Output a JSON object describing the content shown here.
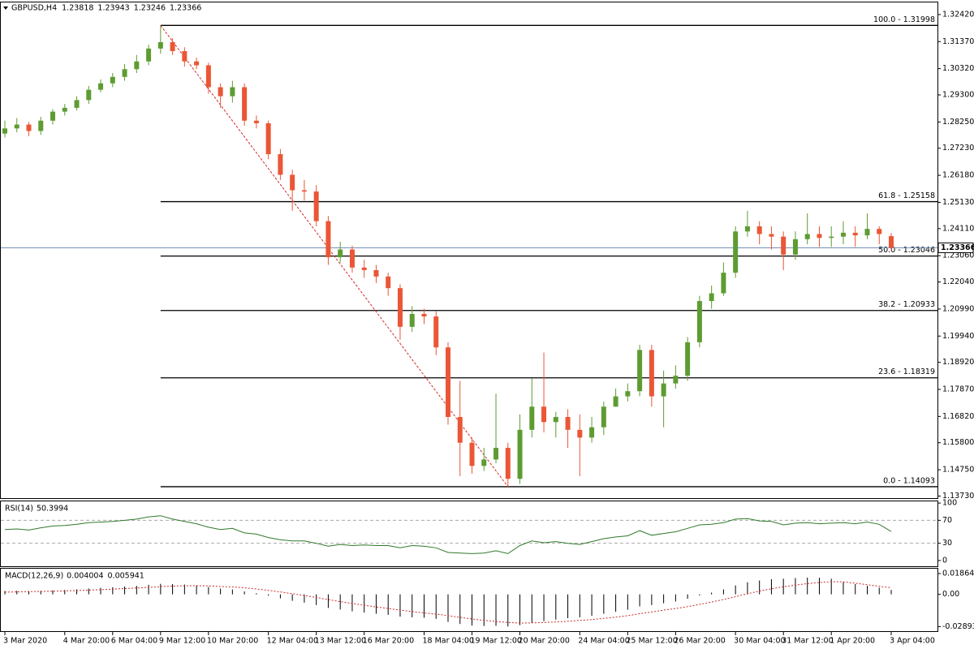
{
  "chart_data": [
    {
      "type": "candlestick",
      "title": "GBPUSD,H4",
      "categories": [
        "3 Mar 2020",
        null,
        null,
        null,
        null,
        "4 Mar 20:00",
        null,
        null,
        null,
        "6 Mar 04:00",
        null,
        null,
        null,
        "9 Mar 12:00",
        null,
        null,
        null,
        "10 Mar 20:00",
        null,
        null,
        null,
        null,
        "12 Mar 04:00",
        null,
        null,
        null,
        "13 Mar 12:00",
        null,
        null,
        null,
        "16 Mar 20:00",
        null,
        null,
        null,
        null,
        "18 Mar 04:00",
        null,
        null,
        null,
        "19 Mar 12:00",
        null,
        null,
        null,
        "20 Mar 20:00",
        null,
        null,
        null,
        null,
        "24 Mar 04:00",
        null,
        null,
        null,
        "25 Mar 12:00",
        null,
        null,
        null,
        "26 Mar 20:00",
        null,
        null,
        null,
        null,
        "30 Mar 04:00",
        null,
        null,
        null,
        "31 Mar 12:00",
        null,
        null,
        null,
        "1 Apr 20:00",
        null,
        null,
        null,
        null,
        "3 Apr 04:00"
      ],
      "open": [
        1.278,
        1.28,
        1.2815,
        1.279,
        1.283,
        1.2865,
        1.288,
        1.291,
        1.295,
        1.2975,
        1.3,
        1.303,
        1.306,
        1.311,
        1.3135,
        1.31,
        1.306,
        1.3045,
        1.296,
        1.2925,
        1.296,
        1.283,
        1.282,
        1.27,
        1.262,
        1.256,
        1.2555,
        1.244,
        1.23,
        1.233,
        1.226,
        1.225,
        1.2225,
        1.218,
        1.203,
        1.208,
        1.207,
        1.195,
        1.168,
        1.158,
        1.149,
        1.1515,
        1.156,
        1.144,
        1.163,
        1.172,
        1.166,
        1.168,
        1.163,
        1.16,
        1.164,
        1.172,
        1.176,
        1.178,
        1.194,
        1.176,
        1.181,
        1.184,
        1.197,
        1.213,
        1.216,
        1.224,
        1.24,
        1.242,
        1.239,
        1.238,
        1.231,
        1.237,
        1.239,
        1.2375,
        1.238,
        1.2395,
        1.2385,
        1.241,
        1.23818
      ],
      "high": [
        1.283,
        1.284,
        1.2825,
        1.2845,
        1.2875,
        1.2895,
        1.2925,
        1.2965,
        1.299,
        1.3015,
        1.305,
        1.3085,
        1.3125,
        1.31998,
        1.315,
        1.3115,
        1.3075,
        1.3055,
        1.2975,
        1.2985,
        1.2975,
        1.285,
        1.283,
        1.272,
        1.264,
        1.26,
        1.258,
        1.246,
        1.236,
        1.2345,
        1.229,
        1.227,
        1.224,
        1.2195,
        1.211,
        1.21,
        1.209,
        1.197,
        1.182,
        1.16,
        1.156,
        1.177,
        1.158,
        1.169,
        1.183,
        1.193,
        1.17,
        1.171,
        1.169,
        1.168,
        1.174,
        1.179,
        1.181,
        1.196,
        1.196,
        1.186,
        1.188,
        1.199,
        1.215,
        1.219,
        1.228,
        1.242,
        1.248,
        1.244,
        1.242,
        1.24,
        1.24,
        1.247,
        1.242,
        1.242,
        1.244,
        1.242,
        1.247,
        1.242,
        1.23943
      ],
      "low": [
        1.2765,
        1.2785,
        1.277,
        1.2775,
        1.2815,
        1.285,
        1.287,
        1.2895,
        1.294,
        1.296,
        1.2985,
        1.3015,
        1.3045,
        1.309,
        1.3085,
        1.304,
        1.303,
        1.2935,
        1.288,
        1.29,
        1.281,
        1.28,
        1.268,
        1.26,
        1.248,
        1.252,
        1.242,
        1.227,
        1.228,
        1.224,
        1.222,
        1.22,
        1.215,
        1.198,
        1.201,
        1.204,
        1.192,
        1.165,
        1.145,
        1.146,
        1.147,
        1.15,
        1.14093,
        1.142,
        1.16,
        1.162,
        1.16,
        1.156,
        1.145,
        1.158,
        1.161,
        1.172,
        1.174,
        1.176,
        1.172,
        1.164,
        1.179,
        1.182,
        1.195,
        1.21,
        1.215,
        1.222,
        1.238,
        1.235,
        1.233,
        1.225,
        1.229,
        1.235,
        1.234,
        1.234,
        1.235,
        1.234,
        1.237,
        1.235,
        1.23246
      ],
      "close": [
        1.28,
        1.2815,
        1.279,
        1.283,
        1.2865,
        1.288,
        1.291,
        1.295,
        1.2975,
        1.3,
        1.303,
        1.306,
        1.311,
        1.3135,
        1.31,
        1.306,
        1.3045,
        1.296,
        1.2925,
        1.296,
        1.283,
        1.282,
        1.27,
        1.262,
        1.256,
        1.2555,
        1.244,
        1.23,
        1.233,
        1.226,
        1.225,
        1.2225,
        1.218,
        1.203,
        1.208,
        1.207,
        1.195,
        1.168,
        1.158,
        1.149,
        1.1515,
        1.156,
        1.144,
        1.163,
        1.172,
        1.166,
        1.168,
        1.163,
        1.16,
        1.164,
        1.172,
        1.176,
        1.178,
        1.194,
        1.176,
        1.181,
        1.184,
        1.197,
        1.213,
        1.216,
        1.224,
        1.24,
        1.242,
        1.239,
        1.238,
        1.231,
        1.237,
        1.239,
        1.2375,
        1.238,
        1.2395,
        1.2385,
        1.241,
        1.239,
        1.23366
      ],
      "up_color": "#5e9c32",
      "down_color": "#ea5636",
      "fib_color": "#000000",
      "trend_color": "#d42a2a",
      "last_line_color": "#7490b8",
      "ylim": [
        1.1365,
        1.3289
      ],
      "yticks": [
        {
          "value": 1.3242,
          "label": "1.32420"
        },
        {
          "value": 1.3137,
          "label": "1.31370"
        },
        {
          "value": 1.3032,
          "label": "1.30320"
        },
        {
          "value": 1.293,
          "label": "1.29300"
        },
        {
          "value": 1.2825,
          "label": "1.28250"
        },
        {
          "value": 1.2723,
          "label": "1.27230"
        },
        {
          "value": 1.2618,
          "label": "1.26180"
        },
        {
          "value": 1.2513,
          "label": "1.25130"
        },
        {
          "value": 1.2411,
          "label": "1.24110"
        },
        {
          "value": 1.2306,
          "label": "1.23060"
        },
        {
          "value": 1.2204,
          "label": "1.22040"
        },
        {
          "value": 1.2099,
          "label": "1.20990"
        },
        {
          "value": 1.1994,
          "label": "1.19940"
        },
        {
          "value": 1.1892,
          "label": "1.18920"
        },
        {
          "value": 1.1787,
          "label": "1.17870"
        },
        {
          "value": 1.1682,
          "label": "1.16820"
        },
        {
          "value": 1.158,
          "label": "1.15800"
        },
        {
          "value": 1.1475,
          "label": "1.14750"
        },
        {
          "value": 1.1373,
          "label": "1.13730"
        }
      ],
      "fib_levels": [
        {
          "value": 1.31998,
          "label": "100.0 - 1.31998"
        },
        {
          "value": 1.25158,
          "label": "61.8 - 1.25158"
        },
        {
          "value": 1.23046,
          "label": "50.0 - 1.23046"
        },
        {
          "value": 1.20933,
          "label": "38.2 - 1.20933"
        },
        {
          "value": 1.18319,
          "label": "23.6 - 1.18319"
        },
        {
          "value": 1.14093,
          "label": "0.0 - 1.14093"
        }
      ]
    },
    {
      "type": "line",
      "title": "RSI(14)",
      "color": "#2f7a2a",
      "values": [
        54,
        55,
        53,
        57,
        60,
        61,
        63,
        66,
        67,
        68,
        70,
        72,
        76,
        78,
        72,
        68,
        64,
        58,
        54,
        56,
        48,
        46,
        40,
        36,
        34,
        34,
        30,
        25,
        28,
        26,
        27,
        26,
        26,
        22,
        26,
        25,
        22,
        14,
        13,
        12,
        13,
        17,
        12,
        26,
        34,
        31,
        33,
        30,
        28,
        33,
        38,
        41,
        43,
        52,
        44,
        47,
        50,
        56,
        62,
        63,
        66,
        72,
        73,
        69,
        68,
        62,
        65,
        66,
        64,
        65,
        66,
        64,
        67,
        63,
        50.3994
      ],
      "ylim": [
        -10,
        103
      ],
      "yticks": [
        100,
        70,
        30,
        0
      ]
    },
    {
      "type": "bar",
      "title": "MACD(12,26,9)",
      "color": "#000000",
      "signal_color": "#cc2a2a",
      "values": [
        0.003,
        0.0032,
        0.003,
        0.0032,
        0.0036,
        0.004,
        0.0045,
        0.0052,
        0.0058,
        0.0064,
        0.007,
        0.0076,
        0.0086,
        0.0094,
        0.0092,
        0.0088,
        0.008,
        0.0066,
        0.0052,
        0.0044,
        0.0026,
        0.001,
        -0.0012,
        -0.0036,
        -0.0058,
        -0.0074,
        -0.0096,
        -0.0122,
        -0.0136,
        -0.0152,
        -0.0164,
        -0.0174,
        -0.0184,
        -0.02,
        -0.0206,
        -0.021,
        -0.022,
        -0.0246,
        -0.0266,
        -0.028,
        -0.0284,
        -0.0282,
        -0.0288,
        -0.0276,
        -0.0254,
        -0.024,
        -0.0226,
        -0.0214,
        -0.0206,
        -0.0192,
        -0.0174,
        -0.0156,
        -0.0138,
        -0.0108,
        -0.0096,
        -0.008,
        -0.0064,
        -0.004,
        -0.001,
        0.0016,
        0.0044,
        0.008,
        0.0108,
        0.0124,
        0.0136,
        0.014,
        0.0146,
        0.015,
        0.0148,
        0.014,
        0.011,
        0.0092,
        0.0076,
        0.006,
        0.004004
      ],
      "signal_values": [
        0.002,
        0.0022,
        0.0024,
        0.0026,
        0.0028,
        0.0031,
        0.0034,
        0.0038,
        0.0042,
        0.0047,
        0.0052,
        0.0057,
        0.0063,
        0.0069,
        0.0074,
        0.0077,
        0.0078,
        0.0076,
        0.0071,
        0.0066,
        0.0058,
        0.0048,
        0.0036,
        0.0022,
        0.0006,
        -0.001,
        -0.0028,
        -0.0047,
        -0.0065,
        -0.0082,
        -0.0098,
        -0.0113,
        -0.0127,
        -0.0142,
        -0.0155,
        -0.0166,
        -0.0177,
        -0.0191,
        -0.0206,
        -0.0221,
        -0.0233,
        -0.0243,
        -0.0252,
        -0.0257,
        -0.0256,
        -0.0253,
        -0.0247,
        -0.0241,
        -0.0234,
        -0.0226,
        -0.0216,
        -0.0204,
        -0.0191,
        -0.0174,
        -0.0158,
        -0.0142,
        -0.0127,
        -0.011,
        -0.009,
        -0.0069,
        -0.0046,
        -0.0021,
        0.0005,
        0.0029,
        0.005,
        0.0068,
        0.0083,
        0.0096,
        0.0106,
        0.0113,
        0.0112,
        0.01,
        0.0086,
        0.0072,
        0.005941
      ],
      "ylim": [
        -0.033,
        0.023
      ],
      "yticks": [
        0.018643,
        {
          "value": 0,
          "label": "0.00"
        },
        -0.028935
      ]
    }
  ]
}
